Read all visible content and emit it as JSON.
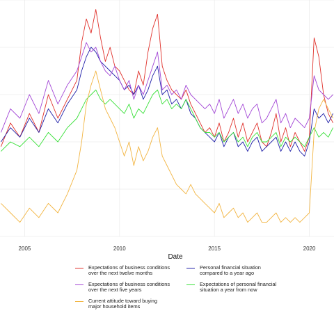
{
  "chart_data": {
    "type": "line",
    "title": "",
    "xlabel": "Date",
    "ylabel": "",
    "xlim": [
      2003.7,
      2021.3
    ],
    "ylim": [
      0,
      100
    ],
    "grid": true,
    "legend_position": "bottom",
    "x_ticks": [
      2005,
      2010,
      2015,
      2020
    ],
    "x_tick_labels": [
      "2005",
      "2010",
      "2015",
      "2020"
    ],
    "x": [
      2003.75,
      2004.25,
      2004.75,
      2005.25,
      2005.75,
      2006.25,
      2006.75,
      2007.25,
      2007.75,
      2008.0,
      2008.25,
      2008.5,
      2008.75,
      2009.0,
      2009.25,
      2009.5,
      2009.75,
      2010.0,
      2010.25,
      2010.5,
      2010.75,
      2011.0,
      2011.25,
      2011.5,
      2011.75,
      2012.0,
      2012.25,
      2012.5,
      2012.75,
      2013.0,
      2013.25,
      2013.5,
      2013.75,
      2014.0,
      2014.25,
      2014.5,
      2014.75,
      2015.0,
      2015.25,
      2015.5,
      2015.75,
      2016.0,
      2016.25,
      2016.5,
      2016.75,
      2017.0,
      2017.25,
      2017.5,
      2017.75,
      2018.0,
      2018.25,
      2018.5,
      2018.75,
      2019.0,
      2019.25,
      2019.5,
      2019.75,
      2020.0,
      2020.25,
      2020.5,
      2020.75,
      2021.0,
      2021.25
    ],
    "series": [
      {
        "name": "Expectations of business conditions\nover the next twelve months",
        "color": "#e0302a",
        "values": [
          38,
          48,
          42,
          52,
          44,
          60,
          50,
          58,
          66,
          82,
          92,
          86,
          96,
          84,
          74,
          80,
          72,
          70,
          66,
          62,
          60,
          70,
          64,
          78,
          88,
          94,
          72,
          66,
          62,
          60,
          58,
          62,
          56,
          52,
          48,
          44,
          46,
          42,
          48,
          40,
          44,
          50,
          42,
          48,
          40,
          44,
          48,
          40,
          38,
          44,
          52,
          40,
          46,
          38,
          44,
          40,
          36,
          42,
          84,
          76,
          60,
          52,
          48
        ]
      },
      {
        "name": "Personal financial situation\ncompared to a year ago",
        "color": "#1f1fa8",
        "values": [
          40,
          46,
          42,
          50,
          44,
          54,
          48,
          56,
          62,
          70,
          76,
          80,
          78,
          74,
          72,
          70,
          68,
          66,
          62,
          64,
          60,
          64,
          58,
          62,
          68,
          72,
          60,
          62,
          56,
          58,
          54,
          58,
          52,
          50,
          46,
          44,
          42,
          40,
          44,
          38,
          42,
          44,
          38,
          40,
          36,
          40,
          42,
          36,
          38,
          40,
          42,
          36,
          40,
          36,
          40,
          36,
          34,
          40,
          54,
          50,
          52,
          48,
          52
        ]
      },
      {
        "name": "Expectations of business conditions\nover the next five years",
        "color": "#a347d6",
        "values": [
          44,
          54,
          50,
          60,
          52,
          66,
          56,
          64,
          70,
          76,
          82,
          78,
          80,
          74,
          70,
          68,
          72,
          66,
          62,
          66,
          58,
          64,
          60,
          66,
          72,
          78,
          62,
          64,
          60,
          62,
          58,
          64,
          60,
          58,
          56,
          54,
          56,
          52,
          58,
          50,
          54,
          58,
          52,
          56,
          50,
          54,
          56,
          48,
          50,
          54,
          58,
          48,
          52,
          46,
          50,
          48,
          46,
          50,
          68,
          62,
          60,
          58,
          60
        ]
      },
      {
        "name": "Expectations of personal financial\nsituation a year from now",
        "color": "#37e037",
        "values": [
          36,
          40,
          38,
          42,
          38,
          44,
          40,
          46,
          50,
          54,
          58,
          60,
          62,
          58,
          56,
          58,
          56,
          54,
          52,
          56,
          50,
          54,
          52,
          56,
          60,
          62,
          56,
          58,
          54,
          56,
          54,
          58,
          54,
          50,
          46,
          44,
          44,
          42,
          44,
          40,
          42,
          44,
          40,
          42,
          38,
          42,
          44,
          40,
          40,
          42,
          44,
          38,
          42,
          40,
          42,
          40,
          38,
          42,
          46,
          42,
          44,
          42,
          46
        ]
      },
      {
        "name": "Current attitude toward buying\nmajor household items",
        "color": "#f2b440",
        "values": [
          14,
          10,
          6,
          12,
          8,
          14,
          10,
          18,
          28,
          40,
          56,
          64,
          70,
          62,
          54,
          50,
          46,
          40,
          34,
          40,
          30,
          38,
          32,
          36,
          42,
          46,
          34,
          30,
          26,
          22,
          20,
          18,
          22,
          18,
          16,
          14,
          12,
          10,
          14,
          8,
          10,
          12,
          8,
          10,
          6,
          8,
          10,
          6,
          6,
          8,
          10,
          6,
          8,
          6,
          8,
          6,
          8,
          10,
          44,
          54,
          58,
          54,
          50
        ]
      }
    ]
  }
}
